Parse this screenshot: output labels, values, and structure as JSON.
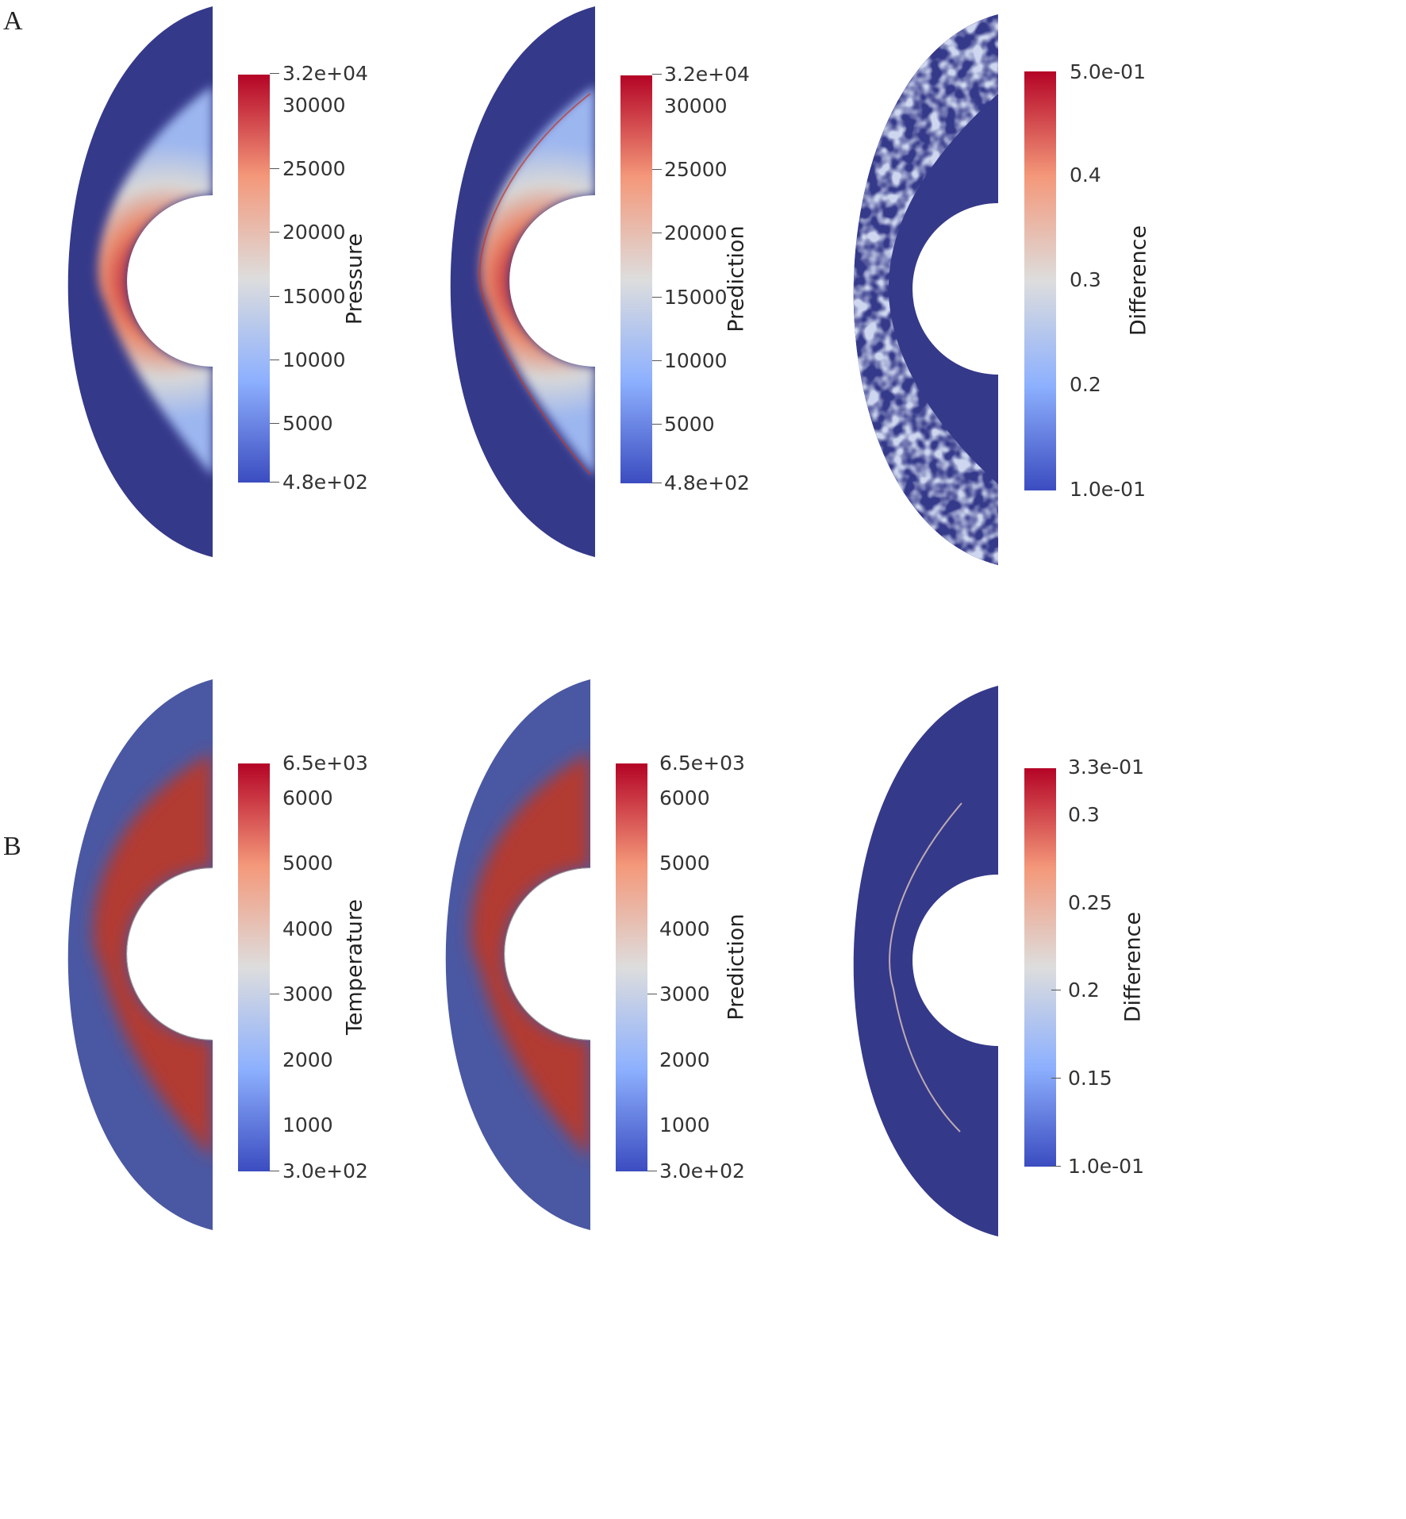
{
  "panels": {
    "a": {
      "letter": "A"
    },
    "b": {
      "letter": "B"
    }
  },
  "colormap": [
    "#3b4cc0",
    "#8db0fe",
    "#dddddd",
    "#f4987a",
    "#b40426"
  ],
  "row_a": {
    "pressure": {
      "label": "Pressure",
      "ticks": [
        "3.2e+04",
        "30000",
        "25000",
        "20000",
        "15000",
        "10000",
        "5000",
        "4.8e+02"
      ]
    },
    "prediction": {
      "label": "Prediction",
      "ticks": [
        "3.2e+04",
        "30000",
        "25000",
        "20000",
        "15000",
        "10000",
        "5000",
        "4.8e+02"
      ]
    },
    "difference": {
      "label": "Difference",
      "ticks": [
        "5.0e-01",
        "0.4",
        "0.3",
        "0.2",
        "1.0e-01"
      ]
    }
  },
  "row_b": {
    "temperature": {
      "label": "Temperature",
      "ticks": [
        "6.5e+03",
        "6000",
        "5000",
        "4000",
        "3000",
        "2000",
        "1000",
        "3.0e+02"
      ]
    },
    "prediction": {
      "label": "Prediction",
      "ticks": [
        "6.5e+03",
        "6000",
        "5000",
        "4000",
        "3000",
        "2000",
        "1000",
        "3.0e+02"
      ]
    },
    "difference": {
      "label": "Difference",
      "ticks": [
        "3.3e-01",
        "0.3",
        "0.25",
        "0.2",
        "0.15",
        "1.0e-01"
      ]
    }
  }
}
